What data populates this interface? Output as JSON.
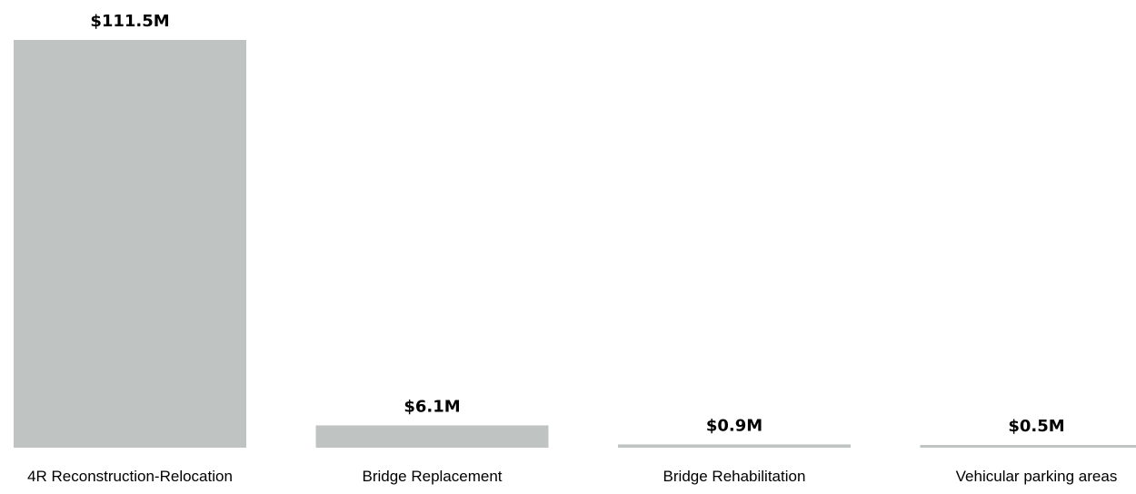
{
  "chart_data": {
    "type": "bar",
    "title": "",
    "xlabel": "",
    "ylabel": "",
    "categories": [
      "4R Reconstruction-Relocation",
      "Bridge Replacement",
      "Bridge Rehabilitation",
      "Vehicular parking areas"
    ],
    "values": [
      111.5,
      6.1,
      0.9,
      0.5
    ],
    "value_labels": [
      "$111.5M",
      "$6.1M",
      "$0.9M",
      "$0.5M"
    ],
    "ylim": [
      0,
      111.5
    ],
    "bar_color": "#bfc4c3",
    "grid": false
  }
}
